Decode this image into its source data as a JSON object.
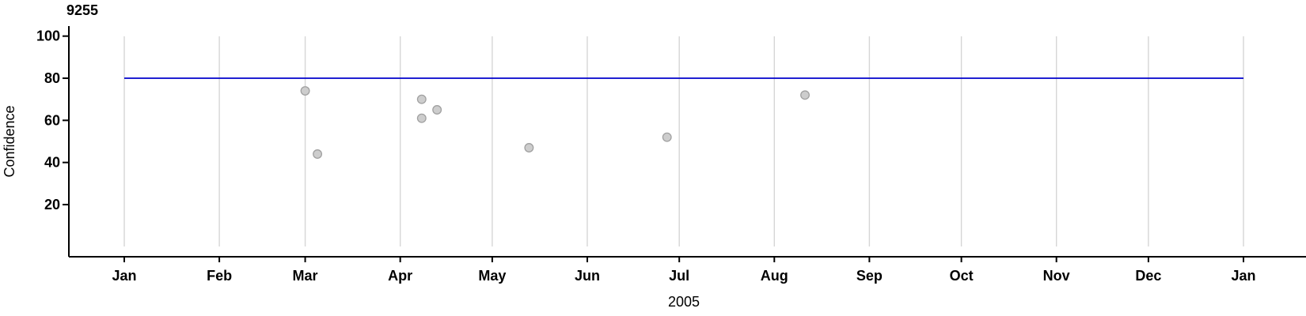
{
  "chart": {
    "title": "9255",
    "x_axis_label": "2005",
    "y_axis_label": "Confidence"
  },
  "chart_data": {
    "type": "scatter",
    "title": "9255",
    "xlabel": "2005",
    "ylabel": "Confidence",
    "x_tick_labels": [
      "Jan",
      "Feb",
      "Mar",
      "Apr",
      "May",
      "Jun",
      "Jul",
      "Aug",
      "Sep",
      "Oct",
      "Nov",
      "Dec",
      "Jan"
    ],
    "y_ticks": [
      20,
      40,
      60,
      80,
      100
    ],
    "ylim": [
      0,
      100
    ],
    "x_range": [
      "2005-01-01",
      "2006-01-01"
    ],
    "grid": "vertical month gridlines on, horizontal off",
    "legend": "none",
    "reference_line": {
      "value": 80,
      "color": "#0000cc"
    },
    "points": [
      {
        "date": "2005-03-01",
        "confidence": 74
      },
      {
        "date": "2005-03-05",
        "confidence": 44
      },
      {
        "date": "2005-04-08",
        "confidence": 70
      },
      {
        "date": "2005-04-13",
        "confidence": 65
      },
      {
        "date": "2005-04-08",
        "confidence": 61
      },
      {
        "date": "2005-05-13",
        "confidence": 47
      },
      {
        "date": "2005-06-27",
        "confidence": 52
      },
      {
        "date": "2005-08-11",
        "confidence": 72
      }
    ],
    "colors": {
      "point_fill": "#cdcdcd",
      "point_stroke": "#a0a0a0",
      "gridline": "#d6d6d6",
      "axis": "#000000",
      "reference_line": "#0000cc",
      "background": "#ffffff"
    }
  }
}
